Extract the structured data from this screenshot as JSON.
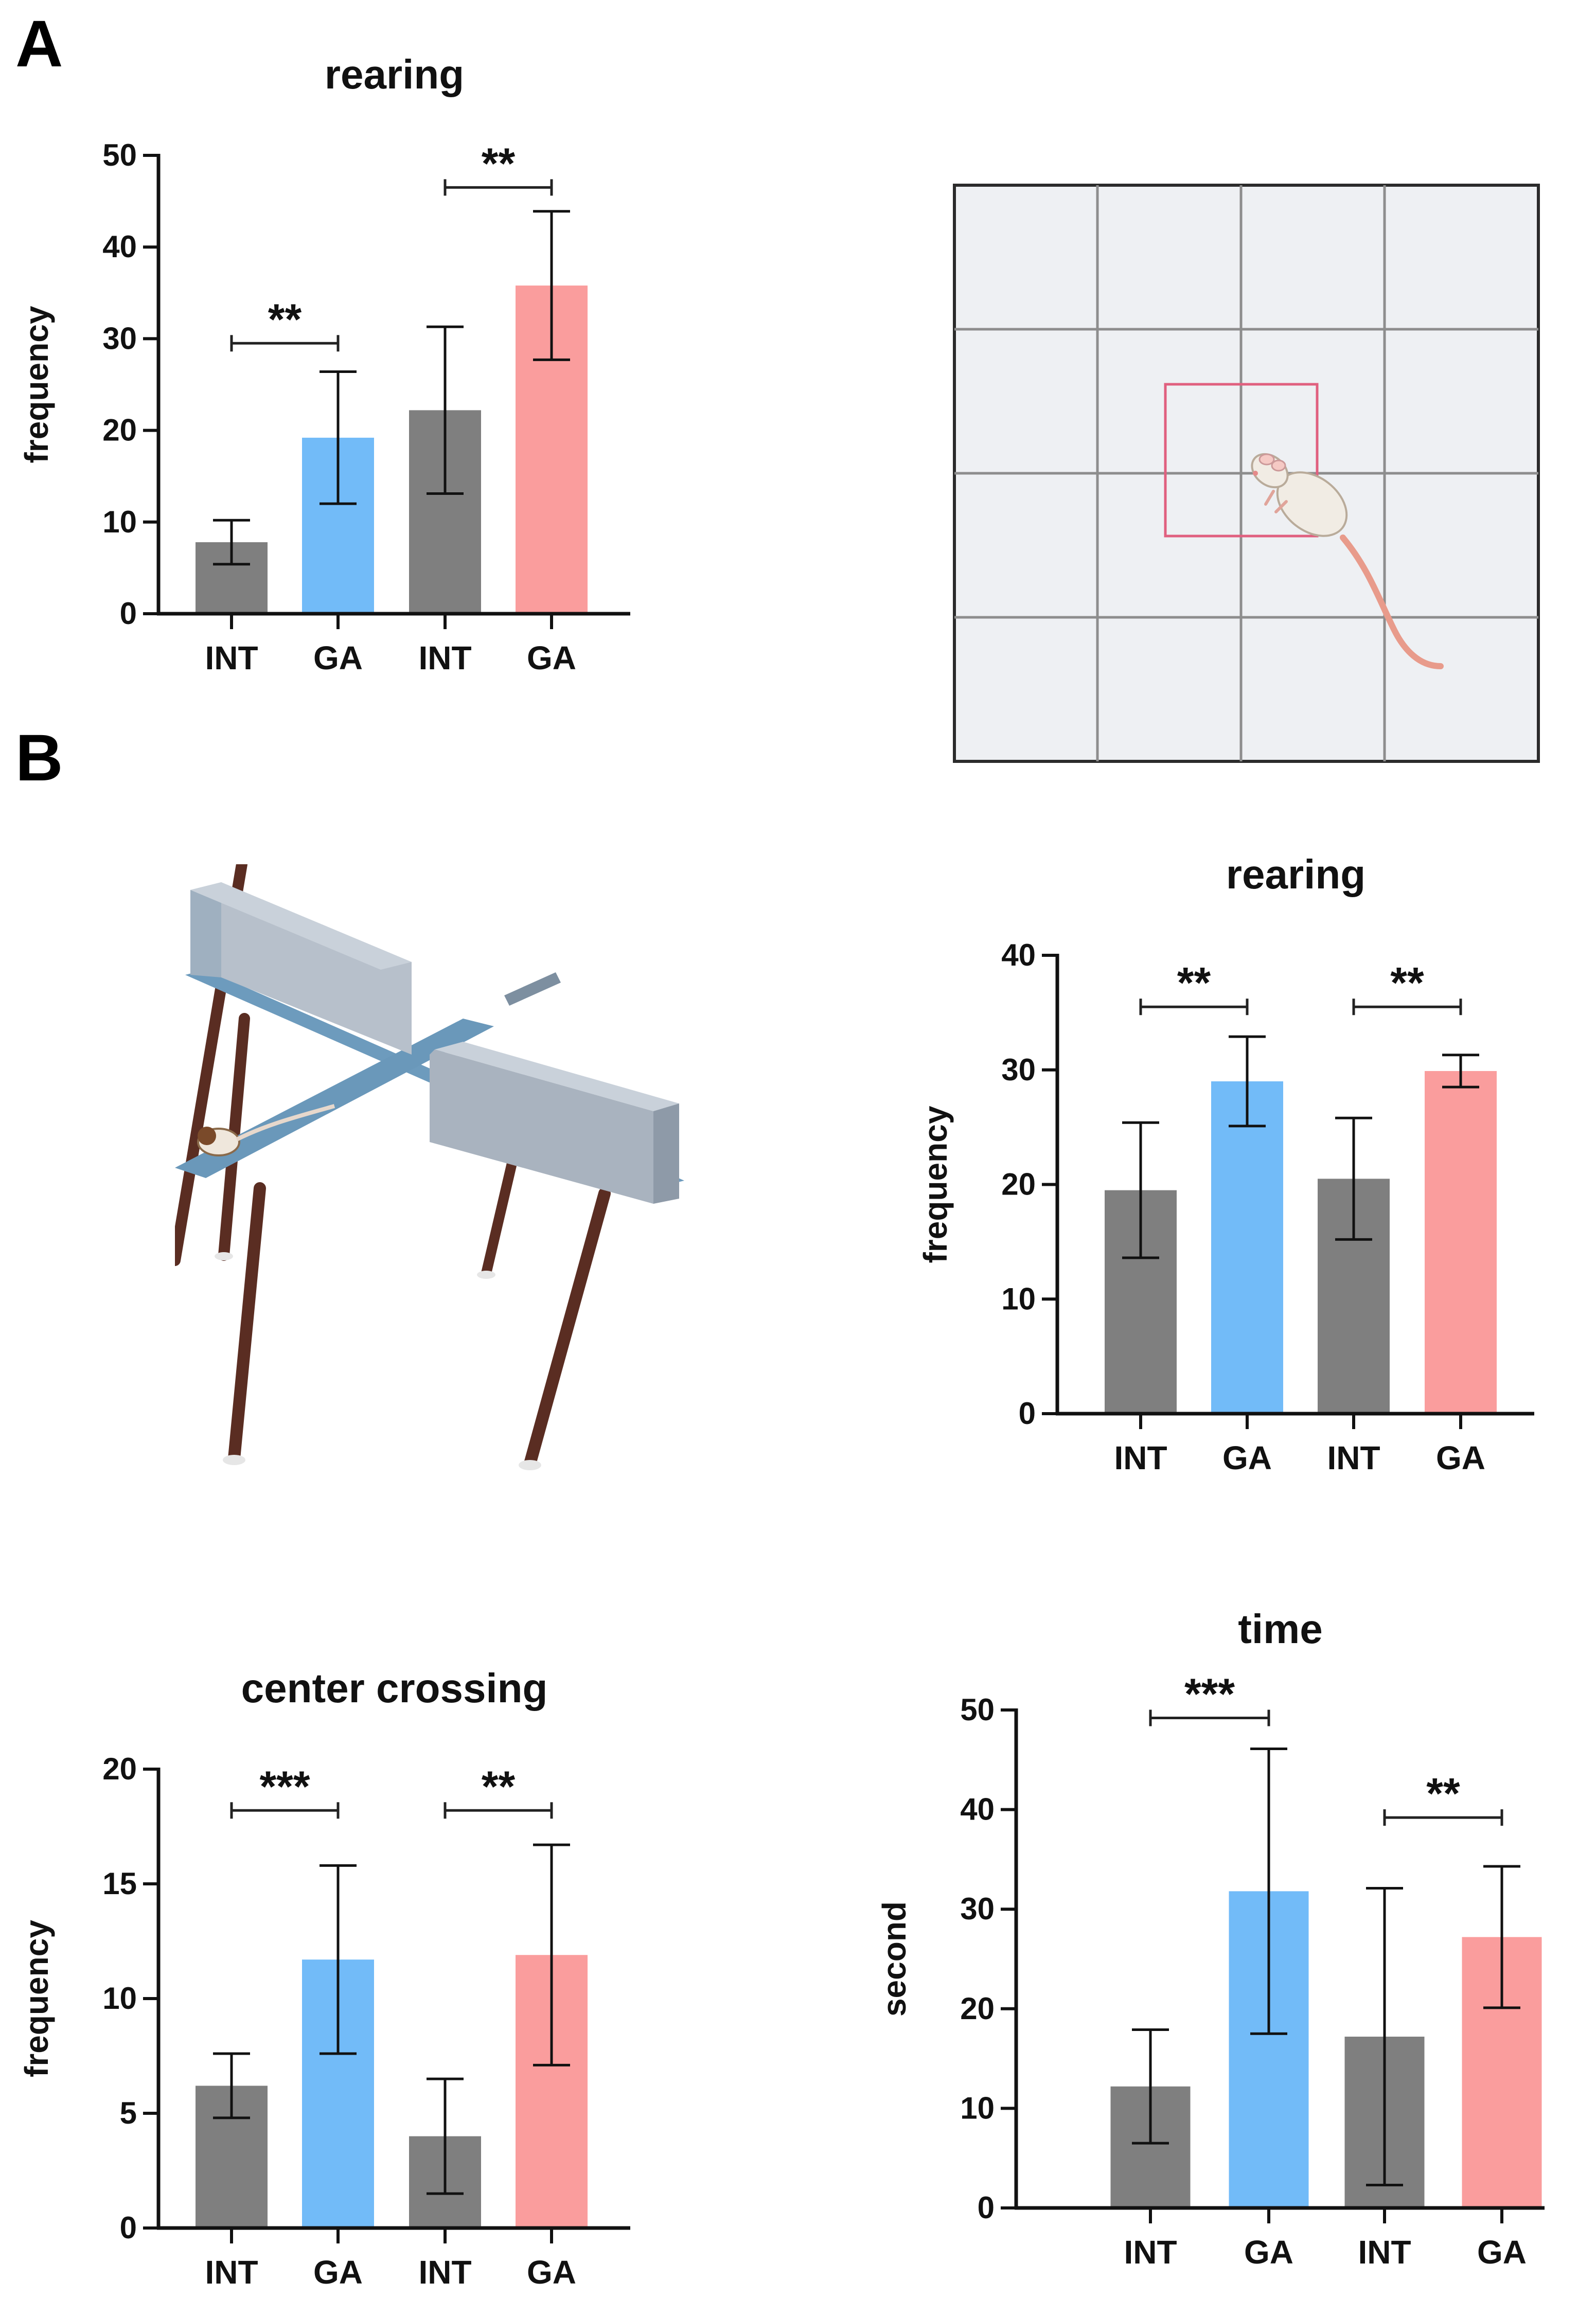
{
  "figure": {
    "panel_letters": [
      "A",
      "B"
    ]
  },
  "colors": {
    "int": "#7f7f7f",
    "ga_blue": "#72bbf8",
    "ga_pink": "#fa9d9d",
    "grid_line": "#8d8d8d",
    "arena_fill": "#eef0f3",
    "zone": "#e0607f"
  },
  "illustrations": {
    "open_field": {
      "rows": 4,
      "cols": 4,
      "icon": "rat-icon"
    },
    "cross_maze": {
      "icon": "elevated-plus-maze-icon"
    }
  },
  "chart_data": [
    {
      "id": "A-rearing",
      "type": "bar",
      "title": "rearing",
      "ylabel": "frequency",
      "ylim": [
        0,
        50
      ],
      "yticks": [
        0,
        10,
        20,
        30,
        40,
        50
      ],
      "categories": [
        "INT",
        "GA",
        "INT",
        "GA"
      ],
      "values": [
        7.8,
        19.2,
        22.2,
        35.8
      ],
      "errors": [
        2.4,
        7.2,
        9.1,
        8.1
      ],
      "bar_colors": [
        "#7f7f7f",
        "#72bbf8",
        "#7f7f7f",
        "#fa9d9d"
      ],
      "significance": [
        {
          "from": 0,
          "to": 1,
          "label": "**",
          "y": 29.5
        },
        {
          "from": 2,
          "to": 3,
          "label": "**",
          "y": 46.5
        }
      ],
      "grid": false
    },
    {
      "id": "B-rearing",
      "type": "bar",
      "title": "rearing",
      "ylabel": "frequency",
      "ylim": [
        0,
        40
      ],
      "yticks": [
        0,
        10,
        20,
        30,
        40
      ],
      "categories": [
        "INT",
        "GA",
        "INT",
        "GA"
      ],
      "values": [
        19.5,
        29.0,
        20.5,
        29.9
      ],
      "errors": [
        5.9,
        3.9,
        5.3,
        1.4
      ],
      "bar_colors": [
        "#7f7f7f",
        "#72bbf8",
        "#7f7f7f",
        "#fa9d9d"
      ],
      "significance": [
        {
          "from": 0,
          "to": 1,
          "label": "**",
          "y": 35.5
        },
        {
          "from": 2,
          "to": 3,
          "label": "**",
          "y": 35.5
        }
      ],
      "grid": false
    },
    {
      "id": "B-center-crossing",
      "type": "bar",
      "title": "center crossing",
      "ylabel": "frequency",
      "ylim": [
        0,
        20
      ],
      "yticks": [
        0,
        5,
        10,
        15,
        20
      ],
      "categories": [
        "INT",
        "GA",
        "INT",
        "GA"
      ],
      "values": [
        6.2,
        11.7,
        4.0,
        11.9
      ],
      "errors": [
        1.4,
        4.1,
        2.5,
        4.8
      ],
      "bar_colors": [
        "#7f7f7f",
        "#72bbf8",
        "#7f7f7f",
        "#fa9d9d"
      ],
      "significance": [
        {
          "from": 0,
          "to": 1,
          "label": "***",
          "y": 18.2
        },
        {
          "from": 2,
          "to": 3,
          "label": "**",
          "y": 18.2
        }
      ],
      "grid": false
    },
    {
      "id": "B-time",
      "type": "bar",
      "title": "time",
      "ylabel": "second",
      "ylim": [
        0,
        50
      ],
      "yticks": [
        0,
        10,
        20,
        30,
        40,
        50
      ],
      "categories": [
        "INT",
        "GA",
        "INT",
        "GA"
      ],
      "values": [
        12.2,
        31.8,
        17.2,
        27.2
      ],
      "errors": [
        5.7,
        14.3,
        14.9,
        7.1
      ],
      "bar_colors": [
        "#7f7f7f",
        "#72bbf8",
        "#7f7f7f",
        "#fa9d9d"
      ],
      "significance": [
        {
          "from": 0,
          "to": 1,
          "label": "***",
          "y": 49.2
        },
        {
          "from": 2,
          "to": 3,
          "label": "**",
          "y": 39.2
        }
      ],
      "grid": false
    }
  ]
}
